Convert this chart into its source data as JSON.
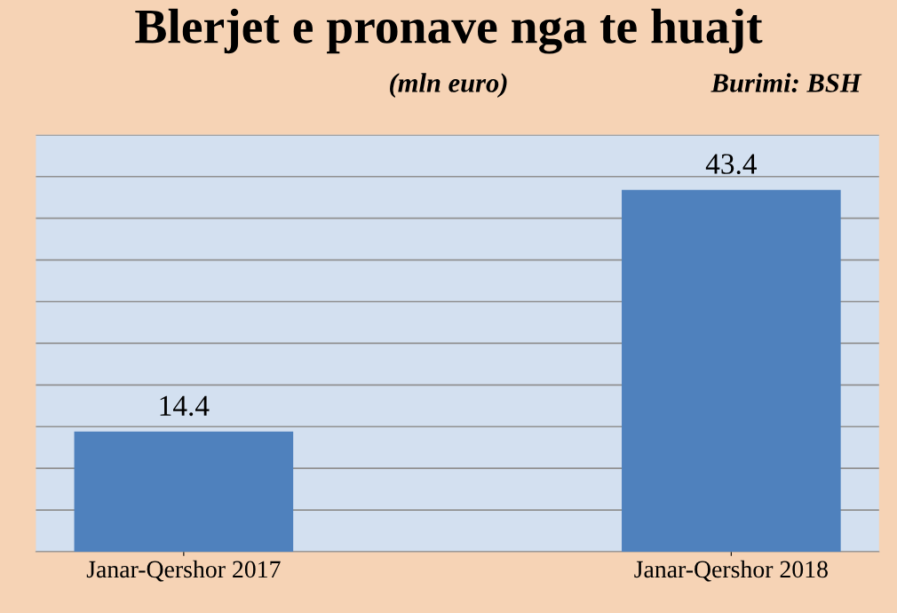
{
  "chart_data": {
    "type": "bar",
    "title": "Blerjet e pronave nga te huajt",
    "subtitle": "(mln euro)",
    "annotations": [
      "Burimi: BSH"
    ],
    "categories": [
      "Janar-Qershor 2017",
      "Janar-Qershor 2018"
    ],
    "values": [
      14.4,
      43.4
    ],
    "color": "#4f81bd",
    "data_labels": true,
    "ylim": [
      0,
      50
    ],
    "yticks": [
      {
        "value": 0,
        "label": null
      },
      {
        "value": 5,
        "label": null
      },
      {
        "value": 10,
        "label": null
      },
      {
        "value": 15,
        "label": null
      },
      {
        "value": 20,
        "label": null
      },
      {
        "value": 25,
        "label": null
      },
      {
        "value": 30,
        "label": null
      },
      {
        "value": 35,
        "label": null
      },
      {
        "value": 40,
        "label": null
      },
      {
        "value": 45,
        "label": null
      },
      {
        "value": 50,
        "label": null
      }
    ],
    "grid": "y",
    "tick_labels": "x"
  }
}
